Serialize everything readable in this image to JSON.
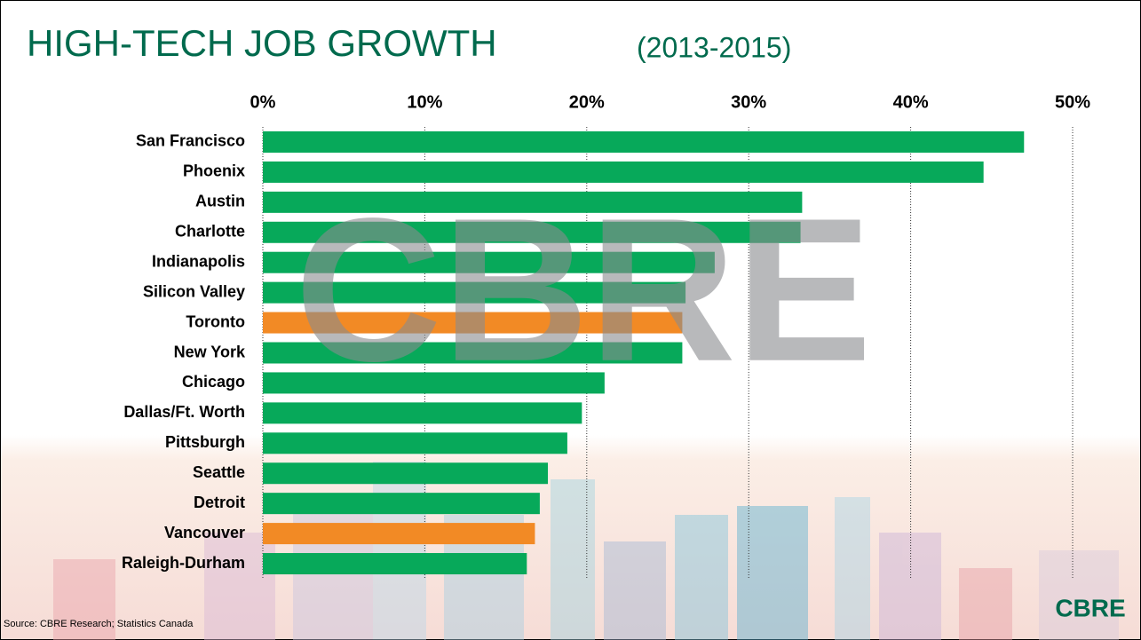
{
  "chart_data": {
    "type": "bar",
    "orientation": "horizontal",
    "title": "HIGH-TECH JOB GROWTH",
    "subtitle": "(2013-2015)",
    "categories": [
      "San Francisco",
      "Phoenix",
      "Austin",
      "Charlotte",
      "Indianapolis",
      "Silicon Valley",
      "Toronto",
      "New York",
      "Chicago",
      "Dallas/Ft. Worth",
      "Pittsburgh",
      "Seattle",
      "Detroit",
      "Vancouver",
      "Raleigh-Durham"
    ],
    "values": [
      47.0,
      44.5,
      33.3,
      33.2,
      27.9,
      26.1,
      25.9,
      25.9,
      21.1,
      19.7,
      18.8,
      17.6,
      17.1,
      16.8,
      16.3
    ],
    "colors": [
      "#07a95a",
      "#07a95a",
      "#07a95a",
      "#07a95a",
      "#07a95a",
      "#07a95a",
      "#f28a25",
      "#07a95a",
      "#07a95a",
      "#07a95a",
      "#07a95a",
      "#07a95a",
      "#07a95a",
      "#f28a25",
      "#07a95a"
    ],
    "xlim": [
      0,
      50
    ],
    "xticks": [
      {
        "value": 0,
        "label": "0%"
      },
      {
        "value": 10,
        "label": "10%"
      },
      {
        "value": 20,
        "label": "20%"
      },
      {
        "value": 30,
        "label": "30%"
      },
      {
        "value": 40,
        "label": "40%"
      },
      {
        "value": 50,
        "label": "50%"
      }
    ],
    "grid": true,
    "source": "Source: CBRE Research; Statistics Canada",
    "watermark": "CBRE",
    "logo": "CBRE"
  }
}
